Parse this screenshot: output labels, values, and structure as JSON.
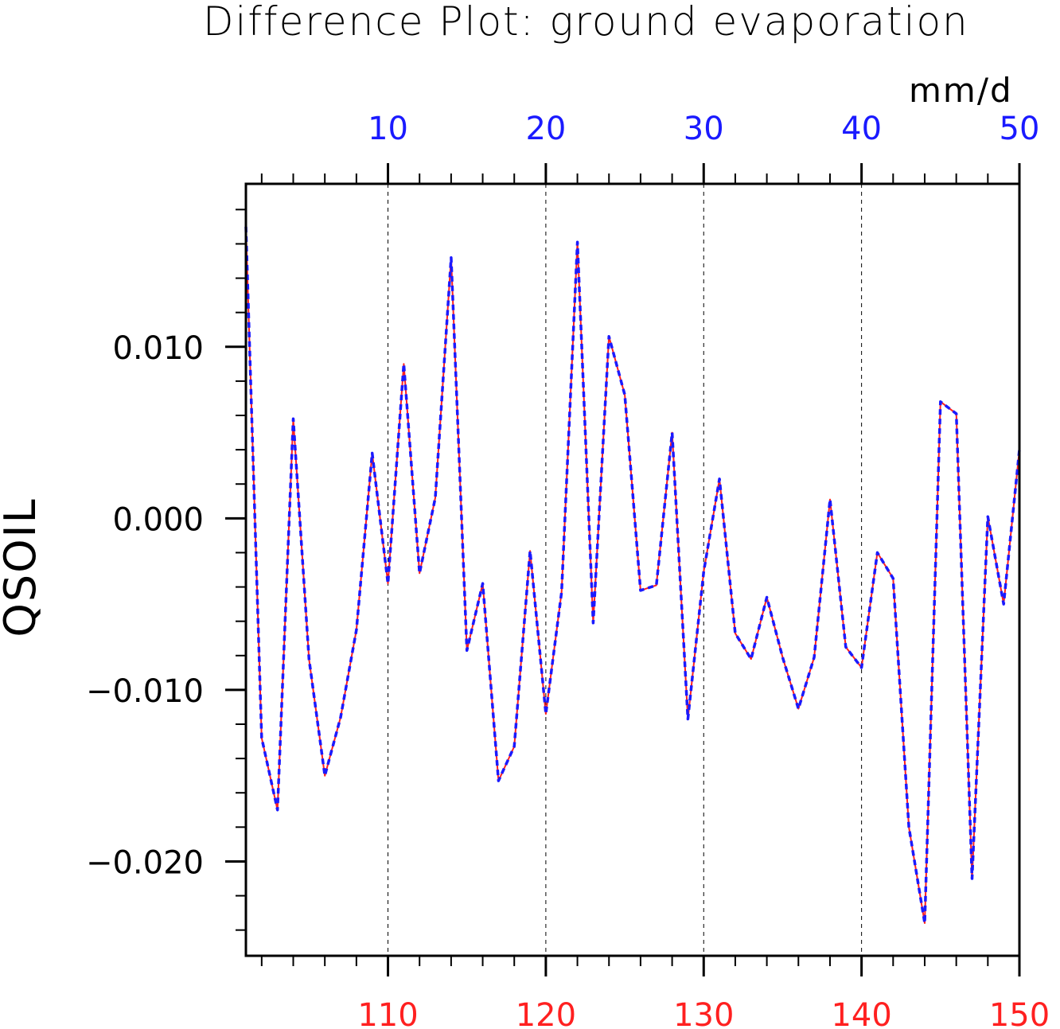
{
  "chart_data": {
    "type": "line",
    "title": "Difference Plot: ground evaporation",
    "units": "mm/d",
    "ylabel": "QSOIL",
    "xlim_bottom": [
      101,
      150
    ],
    "xlim_top": [
      1,
      50
    ],
    "ylim": [
      -0.0255,
      0.0195
    ],
    "x_top_ticks": [
      "10",
      "20",
      "30",
      "40",
      "50"
    ],
    "x_bottom_ticks": [
      "110",
      "120",
      "130",
      "140",
      "150"
    ],
    "y_ticks": [
      "0.010",
      "0.000",
      "−0.010",
      "−0.020"
    ],
    "grid": "vertical dashed",
    "x": [
      101,
      102,
      103,
      104,
      105,
      106,
      107,
      108,
      109,
      110,
      111,
      112,
      113,
      114,
      115,
      116,
      117,
      118,
      119,
      120,
      121,
      122,
      123,
      124,
      125,
      126,
      127,
      128,
      129,
      130,
      131,
      132,
      133,
      134,
      135,
      136,
      137,
      138,
      139,
      140,
      141,
      142,
      143,
      144,
      145,
      146,
      147,
      148,
      149,
      150
    ],
    "series": [
      {
        "color": "#ff2020",
        "style": "solid",
        "values": [
          0.017,
          -0.0128,
          -0.017,
          0.0058,
          -0.0082,
          -0.015,
          -0.0116,
          -0.0065,
          0.0038,
          -0.0038,
          0.009,
          -0.0032,
          0.0012,
          0.0152,
          -0.0077,
          -0.0038,
          -0.0153,
          -0.0133,
          -0.0019,
          -0.0114,
          -0.0043,
          0.0161,
          -0.0061,
          0.0106,
          0.0072,
          -0.0042,
          -0.0039,
          0.005,
          -0.0117,
          -0.0031,
          0.0023,
          -0.0067,
          -0.0082,
          -0.0046,
          -0.0081,
          -0.0111,
          -0.0081,
          0.0011,
          -0.0075,
          -0.0087,
          -0.002,
          -0.0035,
          -0.018,
          -0.0236,
          0.0068,
          0.0061,
          -0.021,
          0.0001,
          -0.005,
          0.004
        ]
      },
      {
        "color": "#1a1aff",
        "style": "dashed",
        "values": [
          0.017,
          -0.0128,
          -0.017,
          0.0058,
          -0.0082,
          -0.015,
          -0.0116,
          -0.0065,
          0.0038,
          -0.0038,
          0.009,
          -0.0032,
          0.0012,
          0.0152,
          -0.0077,
          -0.0038,
          -0.0153,
          -0.0133,
          -0.0019,
          -0.0114,
          -0.0043,
          0.0161,
          -0.0061,
          0.0106,
          0.0072,
          -0.0042,
          -0.0039,
          0.005,
          -0.0117,
          -0.0031,
          0.0023,
          -0.0067,
          -0.0082,
          -0.0046,
          -0.0081,
          -0.0111,
          -0.0081,
          0.0011,
          -0.0075,
          -0.0087,
          -0.002,
          -0.0035,
          -0.018,
          -0.0236,
          0.0068,
          0.0061,
          -0.021,
          0.0001,
          -0.005,
          0.004
        ]
      }
    ]
  }
}
